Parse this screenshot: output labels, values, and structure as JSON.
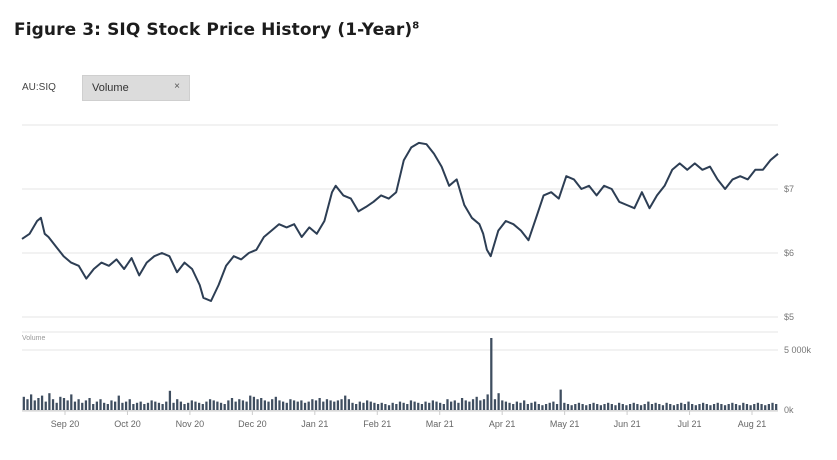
{
  "figure": {
    "title": "Figure 3: SIQ Stock Price History (1-Year)",
    "footnote": "8"
  },
  "toolbar": {
    "ticker": "AU:SIQ",
    "chip_label": "Volume",
    "chip_close": "×"
  },
  "chart_data": {
    "type": "line",
    "price": {
      "yticks": [
        {
          "value": 7,
          "label": "$7"
        },
        {
          "value": 6,
          "label": "$6"
        },
        {
          "value": 5,
          "label": "$5"
        }
      ],
      "ylim": [
        5,
        8.0
      ],
      "xlim": [
        0,
        1
      ],
      "xticks": [
        "Sep 20",
        "Oct 20",
        "Nov 20",
        "Dec 20",
        "Jan 21",
        "Feb 21",
        "Mar 21",
        "Apr 21",
        "May 21",
        "Jun 21",
        "Jul 21",
        "Aug 21"
      ],
      "points": [
        [
          0.0,
          6.22
        ],
        [
          0.01,
          6.3
        ],
        [
          0.02,
          6.5
        ],
        [
          0.025,
          6.55
        ],
        [
          0.03,
          6.3
        ],
        [
          0.035,
          6.25
        ],
        [
          0.045,
          6.1
        ],
        [
          0.055,
          5.95
        ],
        [
          0.065,
          5.85
        ],
        [
          0.075,
          5.8
        ],
        [
          0.085,
          5.6
        ],
        [
          0.095,
          5.75
        ],
        [
          0.105,
          5.85
        ],
        [
          0.115,
          5.8
        ],
        [
          0.125,
          5.9
        ],
        [
          0.135,
          5.75
        ],
        [
          0.145,
          5.92
        ],
        [
          0.155,
          5.65
        ],
        [
          0.165,
          5.85
        ],
        [
          0.175,
          5.95
        ],
        [
          0.185,
          6.0
        ],
        [
          0.195,
          5.95
        ],
        [
          0.205,
          5.7
        ],
        [
          0.215,
          5.85
        ],
        [
          0.225,
          5.75
        ],
        [
          0.235,
          5.5
        ],
        [
          0.24,
          5.3
        ],
        [
          0.25,
          5.25
        ],
        [
          0.26,
          5.5
        ],
        [
          0.27,
          5.8
        ],
        [
          0.28,
          5.95
        ],
        [
          0.29,
          5.9
        ],
        [
          0.3,
          6.0
        ],
        [
          0.31,
          6.05
        ],
        [
          0.32,
          6.25
        ],
        [
          0.33,
          6.35
        ],
        [
          0.34,
          6.45
        ],
        [
          0.35,
          6.4
        ],
        [
          0.36,
          6.45
        ],
        [
          0.37,
          6.25
        ],
        [
          0.38,
          6.4
        ],
        [
          0.39,
          6.3
        ],
        [
          0.4,
          6.5
        ],
        [
          0.41,
          6.95
        ],
        [
          0.415,
          7.05
        ],
        [
          0.425,
          6.9
        ],
        [
          0.435,
          6.85
        ],
        [
          0.445,
          6.65
        ],
        [
          0.455,
          6.72
        ],
        [
          0.465,
          6.8
        ],
        [
          0.475,
          6.9
        ],
        [
          0.485,
          6.85
        ],
        [
          0.495,
          6.95
        ],
        [
          0.505,
          7.45
        ],
        [
          0.515,
          7.65
        ],
        [
          0.525,
          7.72
        ],
        [
          0.535,
          7.7
        ],
        [
          0.545,
          7.55
        ],
        [
          0.555,
          7.35
        ],
        [
          0.565,
          7.05
        ],
        [
          0.575,
          7.15
        ],
        [
          0.585,
          6.75
        ],
        [
          0.595,
          6.55
        ],
        [
          0.605,
          6.45
        ],
        [
          0.61,
          6.3
        ],
        [
          0.615,
          6.05
        ],
        [
          0.62,
          5.95
        ],
        [
          0.63,
          6.35
        ],
        [
          0.64,
          6.5
        ],
        [
          0.65,
          6.45
        ],
        [
          0.66,
          6.35
        ],
        [
          0.67,
          6.2
        ],
        [
          0.68,
          6.55
        ],
        [
          0.69,
          6.9
        ],
        [
          0.7,
          6.95
        ],
        [
          0.71,
          6.85
        ],
        [
          0.72,
          7.2
        ],
        [
          0.73,
          7.15
        ],
        [
          0.74,
          7.0
        ],
        [
          0.75,
          7.05
        ],
        [
          0.76,
          6.9
        ],
        [
          0.77,
          7.05
        ],
        [
          0.78,
          7.0
        ],
        [
          0.79,
          6.8
        ],
        [
          0.8,
          6.75
        ],
        [
          0.81,
          6.7
        ],
        [
          0.82,
          6.95
        ],
        [
          0.83,
          6.7
        ],
        [
          0.84,
          6.9
        ],
        [
          0.85,
          7.05
        ],
        [
          0.86,
          7.3
        ],
        [
          0.87,
          7.4
        ],
        [
          0.88,
          7.3
        ],
        [
          0.89,
          7.4
        ],
        [
          0.9,
          7.3
        ],
        [
          0.91,
          7.35
        ],
        [
          0.92,
          7.15
        ],
        [
          0.93,
          7.0
        ],
        [
          0.94,
          7.15
        ],
        [
          0.95,
          7.2
        ],
        [
          0.96,
          7.15
        ],
        [
          0.97,
          7.3
        ],
        [
          0.98,
          7.3
        ],
        [
          0.99,
          7.45
        ],
        [
          1.0,
          7.55
        ]
      ]
    },
    "volume": {
      "caption": "Volume",
      "yticks": [
        {
          "value": 5000,
          "label": "5 000k"
        },
        {
          "value": 0,
          "label": "0k"
        }
      ],
      "ylim": [
        0,
        6500
      ],
      "bars": [
        1100,
        900,
        1300,
        800,
        1000,
        1200,
        700,
        1400,
        900,
        600,
        1100,
        1000,
        800,
        1300,
        700,
        900,
        600,
        800,
        1000,
        500,
        700,
        900,
        600,
        500,
        800,
        700,
        1200,
        600,
        700,
        900,
        500,
        600,
        700,
        500,
        600,
        800,
        700,
        600,
        500,
        700,
        1600,
        600,
        900,
        700,
        500,
        600,
        800,
        700,
        600,
        500,
        700,
        900,
        800,
        700,
        600,
        500,
        800,
        1000,
        700,
        900,
        800,
        700,
        1200,
        1100,
        900,
        1000,
        800,
        700,
        900,
        1100,
        800,
        700,
        600,
        900,
        800,
        700,
        800,
        600,
        700,
        900,
        800,
        1000,
        700,
        900,
        800,
        700,
        800,
        900,
        1200,
        900,
        600,
        500,
        700,
        600,
        800,
        700,
        600,
        500,
        600,
        500,
        400,
        600,
        500,
        700,
        600,
        500,
        800,
        700,
        600,
        500,
        700,
        600,
        800,
        700,
        600,
        500,
        900,
        700,
        800,
        600,
        1000,
        800,
        700,
        900,
        1100,
        800,
        900,
        1300,
        6000,
        900,
        1400,
        800,
        700,
        600,
        500,
        700,
        600,
        800,
        500,
        600,
        700,
        500,
        400,
        500,
        600,
        700,
        500,
        1700,
        600,
        500,
        400,
        500,
        600,
        500,
        400,
        500,
        600,
        500,
        400,
        500,
        600,
        500,
        400,
        600,
        500,
        400,
        500,
        600,
        500,
        400,
        500,
        700,
        500,
        600,
        500,
        400,
        600,
        500,
        400,
        500,
        600,
        500,
        700,
        500,
        400,
        500,
        600,
        500,
        400,
        500,
        600,
        500,
        400,
        500,
        600,
        500,
        400,
        600,
        500,
        400,
        500,
        600,
        500,
        400,
        500,
        600,
        500
      ]
    }
  },
  "colors": {
    "line": "#2d3e54",
    "bars": "#3f4e60",
    "grid": "#e6e6e6",
    "axis": "#cccccc"
  }
}
